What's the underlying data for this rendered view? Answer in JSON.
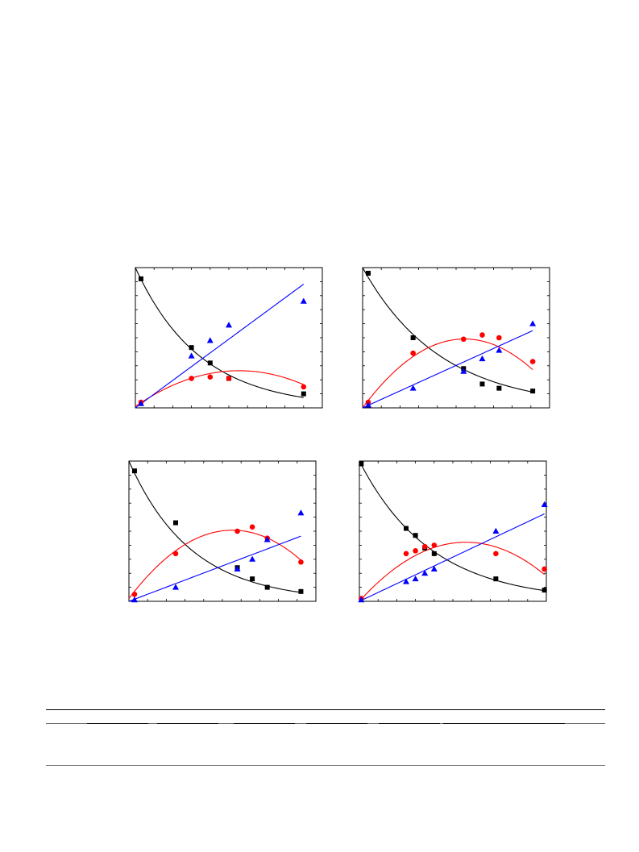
{
  "chart_data": [
    {
      "type": "scatter",
      "xlim": [
        0,
        10
      ],
      "ylim": [
        0,
        1
      ],
      "grid": false,
      "colors": {
        "black": "#000000",
        "red": "#ff0000",
        "blue": "#0000ff"
      },
      "series": [
        {
          "key": "black",
          "marker": "square",
          "x": [
            0.3,
            3.0,
            4.0,
            5.0,
            9.0
          ],
          "y": [
            0.92,
            0.43,
            0.32,
            0.21,
            0.1
          ],
          "fit": {
            "kind": "exp",
            "a": 1.0,
            "k": 0.29,
            "x0": 0.0,
            "x1": 9.0
          }
        },
        {
          "key": "red",
          "marker": "circle",
          "x": [
            0.3,
            3.0,
            4.0,
            5.0,
            9.0
          ],
          "y": [
            0.04,
            0.21,
            0.22,
            0.21,
            0.15
          ],
          "fit": {
            "kind": "poly",
            "coef": [
              0.01,
              0.092,
              -0.0083
            ],
            "x0": 0.0,
            "x1": 9.0
          }
        },
        {
          "key": "blue",
          "marker": "triangle",
          "x": [
            0.3,
            3.0,
            4.0,
            5.0,
            9.0
          ],
          "y": [
            0.03,
            0.37,
            0.48,
            0.59,
            0.76
          ],
          "fit": {
            "kind": "linear",
            "coef": [
              0.0,
              0.098
            ],
            "x0": 0.0,
            "x1": 9.0
          }
        }
      ]
    },
    {
      "type": "scatter",
      "xlim": [
        0,
        10
      ],
      "ylim": [
        0,
        1
      ],
      "grid": false,
      "colors": {
        "black": "#000000",
        "red": "#ff0000",
        "blue": "#0000ff"
      },
      "series": [
        {
          "key": "black",
          "marker": "square",
          "x": [
            0.3,
            2.7,
            5.4,
            6.4,
            7.3,
            9.1
          ],
          "y": [
            0.96,
            0.5,
            0.28,
            0.17,
            0.14,
            0.12
          ],
          "fit": {
            "kind": "exp",
            "a": 1.0,
            "k": 0.24,
            "x0": 0.0,
            "x1": 9.1
          }
        },
        {
          "key": "red",
          "marker": "circle",
          "x": [
            0.3,
            2.7,
            5.4,
            6.4,
            7.3,
            9.1
          ],
          "y": [
            0.04,
            0.39,
            0.49,
            0.52,
            0.5,
            0.33
          ],
          "fit": {
            "kind": "poly",
            "coef": [
              0.0,
              0.18,
              -0.0165
            ],
            "x0": 0.0,
            "x1": 9.1
          }
        },
        {
          "key": "blue",
          "marker": "triangle",
          "x": [
            0.3,
            2.7,
            5.4,
            6.4,
            7.3,
            9.1
          ],
          "y": [
            0.02,
            0.14,
            0.26,
            0.35,
            0.41,
            0.6
          ],
          "fit": {
            "kind": "linear",
            "coef": [
              0.0,
              0.0605
            ],
            "x0": 0.0,
            "x1": 9.1
          }
        }
      ]
    },
    {
      "type": "scatter",
      "xlim": [
        0,
        10
      ],
      "ylim": [
        0,
        1
      ],
      "grid": false,
      "colors": {
        "black": "#000000",
        "red": "#ff0000",
        "blue": "#0000ff"
      },
      "series": [
        {
          "key": "black",
          "marker": "square",
          "x": [
            0.3,
            2.5,
            5.8,
            6.6,
            7.4,
            9.2
          ],
          "y": [
            0.93,
            0.56,
            0.24,
            0.16,
            0.1,
            0.07
          ],
          "fit": {
            "kind": "exp",
            "a": 1.0,
            "k": 0.3,
            "x0": 0.0,
            "x1": 9.2
          }
        },
        {
          "key": "red",
          "marker": "circle",
          "x": [
            0.3,
            2.5,
            5.8,
            6.6,
            7.4,
            9.2
          ],
          "y": [
            0.05,
            0.34,
            0.5,
            0.53,
            0.45,
            0.28
          ],
          "fit": {
            "kind": "poly",
            "coef": [
              0.02,
              0.176,
              -0.0159
            ],
            "x0": 0.0,
            "x1": 9.2
          }
        },
        {
          "key": "blue",
          "marker": "triangle",
          "x": [
            0.3,
            2.5,
            5.8,
            6.6,
            7.4,
            9.2
          ],
          "y": [
            0.01,
            0.1,
            0.23,
            0.3,
            0.44,
            0.63
          ],
          "fit": {
            "kind": "linear",
            "coef": [
              0.0,
              0.0505
            ],
            "x0": 0.0,
            "x1": 9.2
          }
        }
      ]
    },
    {
      "type": "scatter",
      "xlim": [
        0,
        10
      ],
      "ylim": [
        0,
        1
      ],
      "grid": false,
      "colors": {
        "black": "#000000",
        "red": "#ff0000",
        "blue": "#0000ff"
      },
      "series": [
        {
          "key": "black",
          "marker": "square",
          "x": [
            0.1,
            2.5,
            3.0,
            3.5,
            4.0,
            7.3,
            9.9
          ],
          "y": [
            0.98,
            0.52,
            0.47,
            0.38,
            0.34,
            0.16,
            0.08
          ],
          "fit": {
            "kind": "exp",
            "a": 1.0,
            "k": 0.26,
            "x0": 0.0,
            "x1": 9.9
          }
        },
        {
          "key": "red",
          "marker": "circle",
          "x": [
            0.1,
            2.5,
            3.0,
            3.5,
            4.0,
            7.3,
            9.9
          ],
          "y": [
            0.02,
            0.34,
            0.36,
            0.39,
            0.4,
            0.34,
            0.23
          ],
          "fit": {
            "kind": "poly",
            "coef": [
              0.0,
              0.148,
              -0.013
            ],
            "x0": 0.0,
            "x1": 9.9
          }
        },
        {
          "key": "blue",
          "marker": "triangle",
          "x": [
            0.1,
            2.5,
            3.0,
            3.5,
            4.0,
            7.3,
            9.9
          ],
          "y": [
            0.01,
            0.14,
            0.16,
            0.2,
            0.23,
            0.5,
            0.69
          ],
          "fit": {
            "kind": "linear",
            "coef": [
              0.0,
              0.063
            ],
            "x0": 0.0,
            "x1": 9.9
          }
        }
      ]
    }
  ]
}
